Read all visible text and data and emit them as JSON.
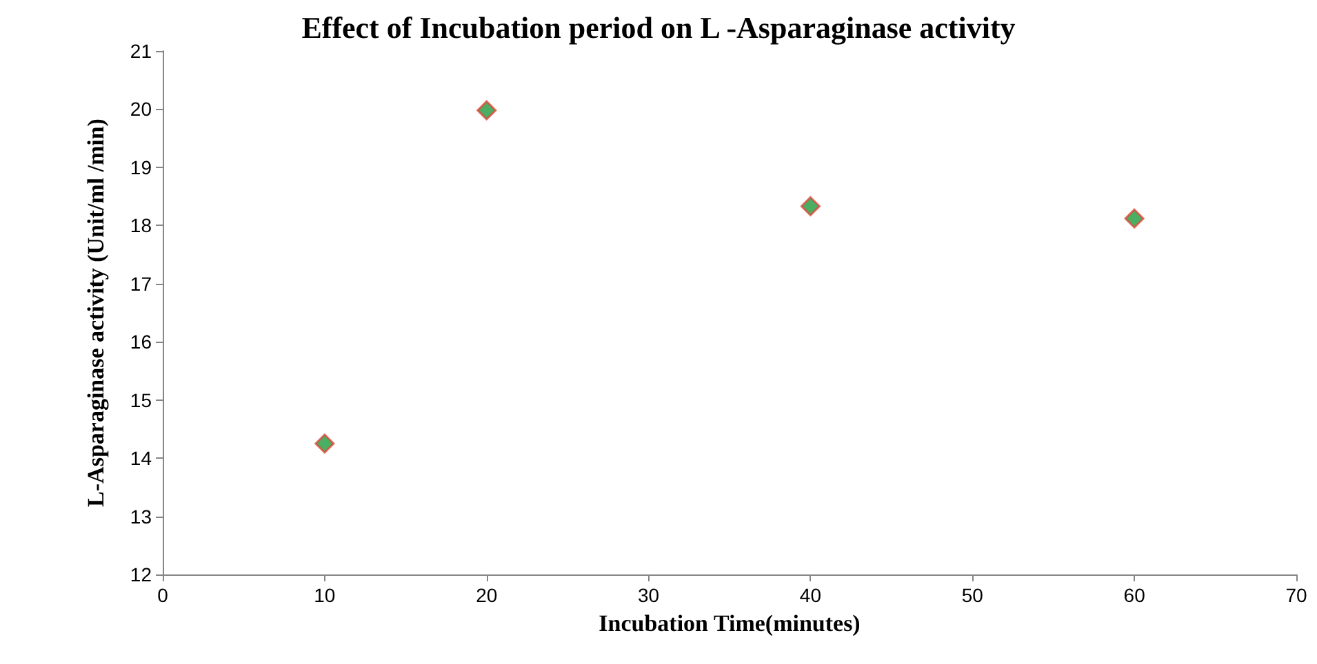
{
  "chart_data": {
    "type": "scatter",
    "title": "Effect of Incubation period on L -Asparaginase activity",
    "xlabel": "Incubation Time(minutes)",
    "ylabel": "L-Asparaginase activity (Unit/ml /min)",
    "x": [
      10,
      20,
      40,
      60
    ],
    "series": [
      {
        "color": "#1e9a3c",
        "values": [
          14.25,
          19.98,
          18.33,
          18.12
        ]
      }
    ],
    "xlim": [
      0,
      70
    ],
    "xticks": [
      0,
      10,
      20,
      30,
      40,
      50,
      60,
      70
    ],
    "ylim": [
      12,
      21
    ],
    "yticks": [
      12,
      13,
      14,
      15,
      16,
      17,
      18,
      19,
      20,
      21
    ],
    "marker": "diamond"
  }
}
